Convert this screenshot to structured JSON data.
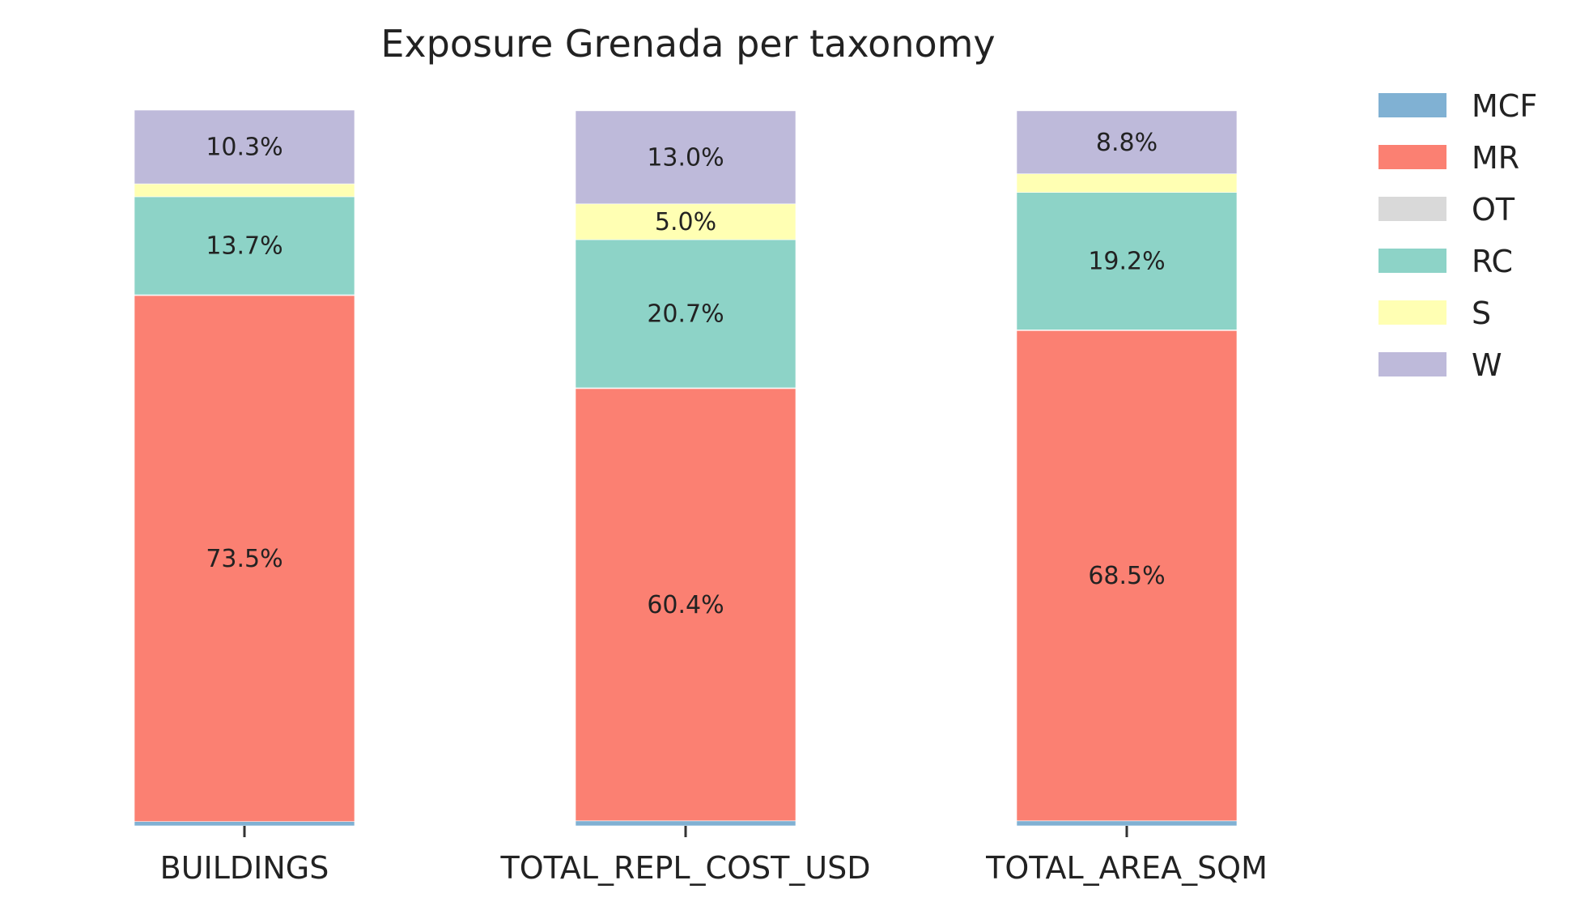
{
  "chart_data": {
    "type": "bar",
    "stacked": true,
    "title": "Exposure Grenada per taxonomy",
    "xlabel": "",
    "ylabel": "",
    "ylim": [
      0,
      100
    ],
    "grid": false,
    "legend_position": "top-right",
    "categories": [
      "BUILDINGS",
      "TOTAL_REPL_COST_USD",
      "TOTAL_AREA_SQM"
    ],
    "series": [
      {
        "name": "MCF",
        "color": "#80b1d3",
        "values": [
          0.6,
          0.7,
          0.7
        ],
        "labels": [
          "",
          "",
          ""
        ]
      },
      {
        "name": "MR",
        "color": "#fb8072",
        "values": [
          73.5,
          60.4,
          68.5
        ],
        "labels": [
          "73.5%",
          "60.4%",
          "68.5%"
        ]
      },
      {
        "name": "OT",
        "color": "#d9d9d9",
        "values": [
          0.1,
          0.1,
          0.1
        ],
        "labels": [
          "",
          "",
          ""
        ]
      },
      {
        "name": "RC",
        "color": "#8dd3c7",
        "values": [
          13.7,
          20.7,
          19.2
        ],
        "labels": [
          "13.7%",
          "20.7%",
          "19.2%"
        ]
      },
      {
        "name": "S",
        "color": "#ffffb3",
        "values": [
          1.8,
          5.0,
          2.6
        ],
        "labels": [
          "",
          "5.0%",
          ""
        ]
      },
      {
        "name": "W",
        "color": "#bebada",
        "values": [
          10.3,
          13.0,
          8.8
        ],
        "labels": [
          "10.3%",
          "13.0%",
          "8.8%"
        ]
      }
    ]
  }
}
